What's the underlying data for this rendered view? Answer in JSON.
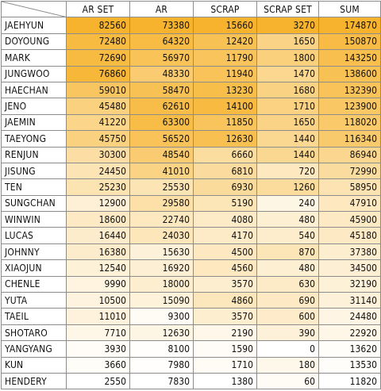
{
  "columns": [
    "AR SET",
    "AR",
    "SCRAP",
    "SCRAP SET",
    "SUM"
  ],
  "rows": [
    {
      "name": "JAEHYUN",
      "values": [
        82560,
        73380,
        15660,
        3270,
        174870
      ]
    },
    {
      "name": "DOYOUNG",
      "values": [
        72480,
        64320,
        12420,
        1650,
        150870
      ]
    },
    {
      "name": "MARK",
      "values": [
        72690,
        56970,
        11790,
        1800,
        143250
      ]
    },
    {
      "name": "JUNGWOO",
      "values": [
        76860,
        48330,
        11940,
        1470,
        138600
      ]
    },
    {
      "name": "HAECHAN",
      "values": [
        59010,
        58470,
        13230,
        1680,
        132390
      ]
    },
    {
      "name": "JENO",
      "values": [
        45480,
        62610,
        14100,
        1710,
        123900
      ]
    },
    {
      "name": "JAEMIN",
      "values": [
        41220,
        63300,
        11850,
        1650,
        118020
      ]
    },
    {
      "name": "TAEYONG",
      "values": [
        45750,
        56520,
        12630,
        1440,
        116340
      ]
    },
    {
      "name": "RENJUN",
      "values": [
        30300,
        48540,
        6660,
        1440,
        86940
      ]
    },
    {
      "name": "JISUNG",
      "values": [
        24450,
        41010,
        6810,
        720,
        72990
      ]
    },
    {
      "name": "TEN",
      "values": [
        25230,
        25530,
        6930,
        1260,
        58950
      ]
    },
    {
      "name": "SUNGCHAN",
      "values": [
        12900,
        29580,
        5190,
        240,
        47910
      ]
    },
    {
      "name": "WINWIN",
      "values": [
        18600,
        22740,
        4080,
        480,
        45900
      ]
    },
    {
      "name": "LUCAS",
      "values": [
        16440,
        24030,
        4170,
        540,
        45180
      ]
    },
    {
      "name": "JOHNNY",
      "values": [
        16380,
        15630,
        4500,
        870,
        37380
      ]
    },
    {
      "name": "XIAOJUN",
      "values": [
        12540,
        16920,
        4560,
        480,
        34500
      ]
    },
    {
      "name": "CHENLE",
      "values": [
        9990,
        18000,
        3570,
        630,
        32190
      ]
    },
    {
      "name": "YUTA",
      "values": [
        10500,
        15090,
        4860,
        690,
        31140
      ]
    },
    {
      "name": "TAEIL",
      "values": [
        11010,
        9300,
        3570,
        600,
        24480
      ]
    },
    {
      "name": "SHOTARO",
      "values": [
        7710,
        12630,
        2190,
        390,
        22920
      ]
    },
    {
      "name": "YANGYANG",
      "values": [
        3930,
        8100,
        1590,
        0,
        13620
      ]
    },
    {
      "name": "KUN",
      "values": [
        3660,
        7980,
        1710,
        180,
        13530
      ]
    },
    {
      "name": "HENDERY",
      "values": [
        2550,
        7830,
        1380,
        60,
        11820
      ]
    }
  ],
  "colors": {
    "high": "#f7b32d",
    "low": "#ffffff",
    "border": "#8c8c8c",
    "text": "#111111"
  }
}
